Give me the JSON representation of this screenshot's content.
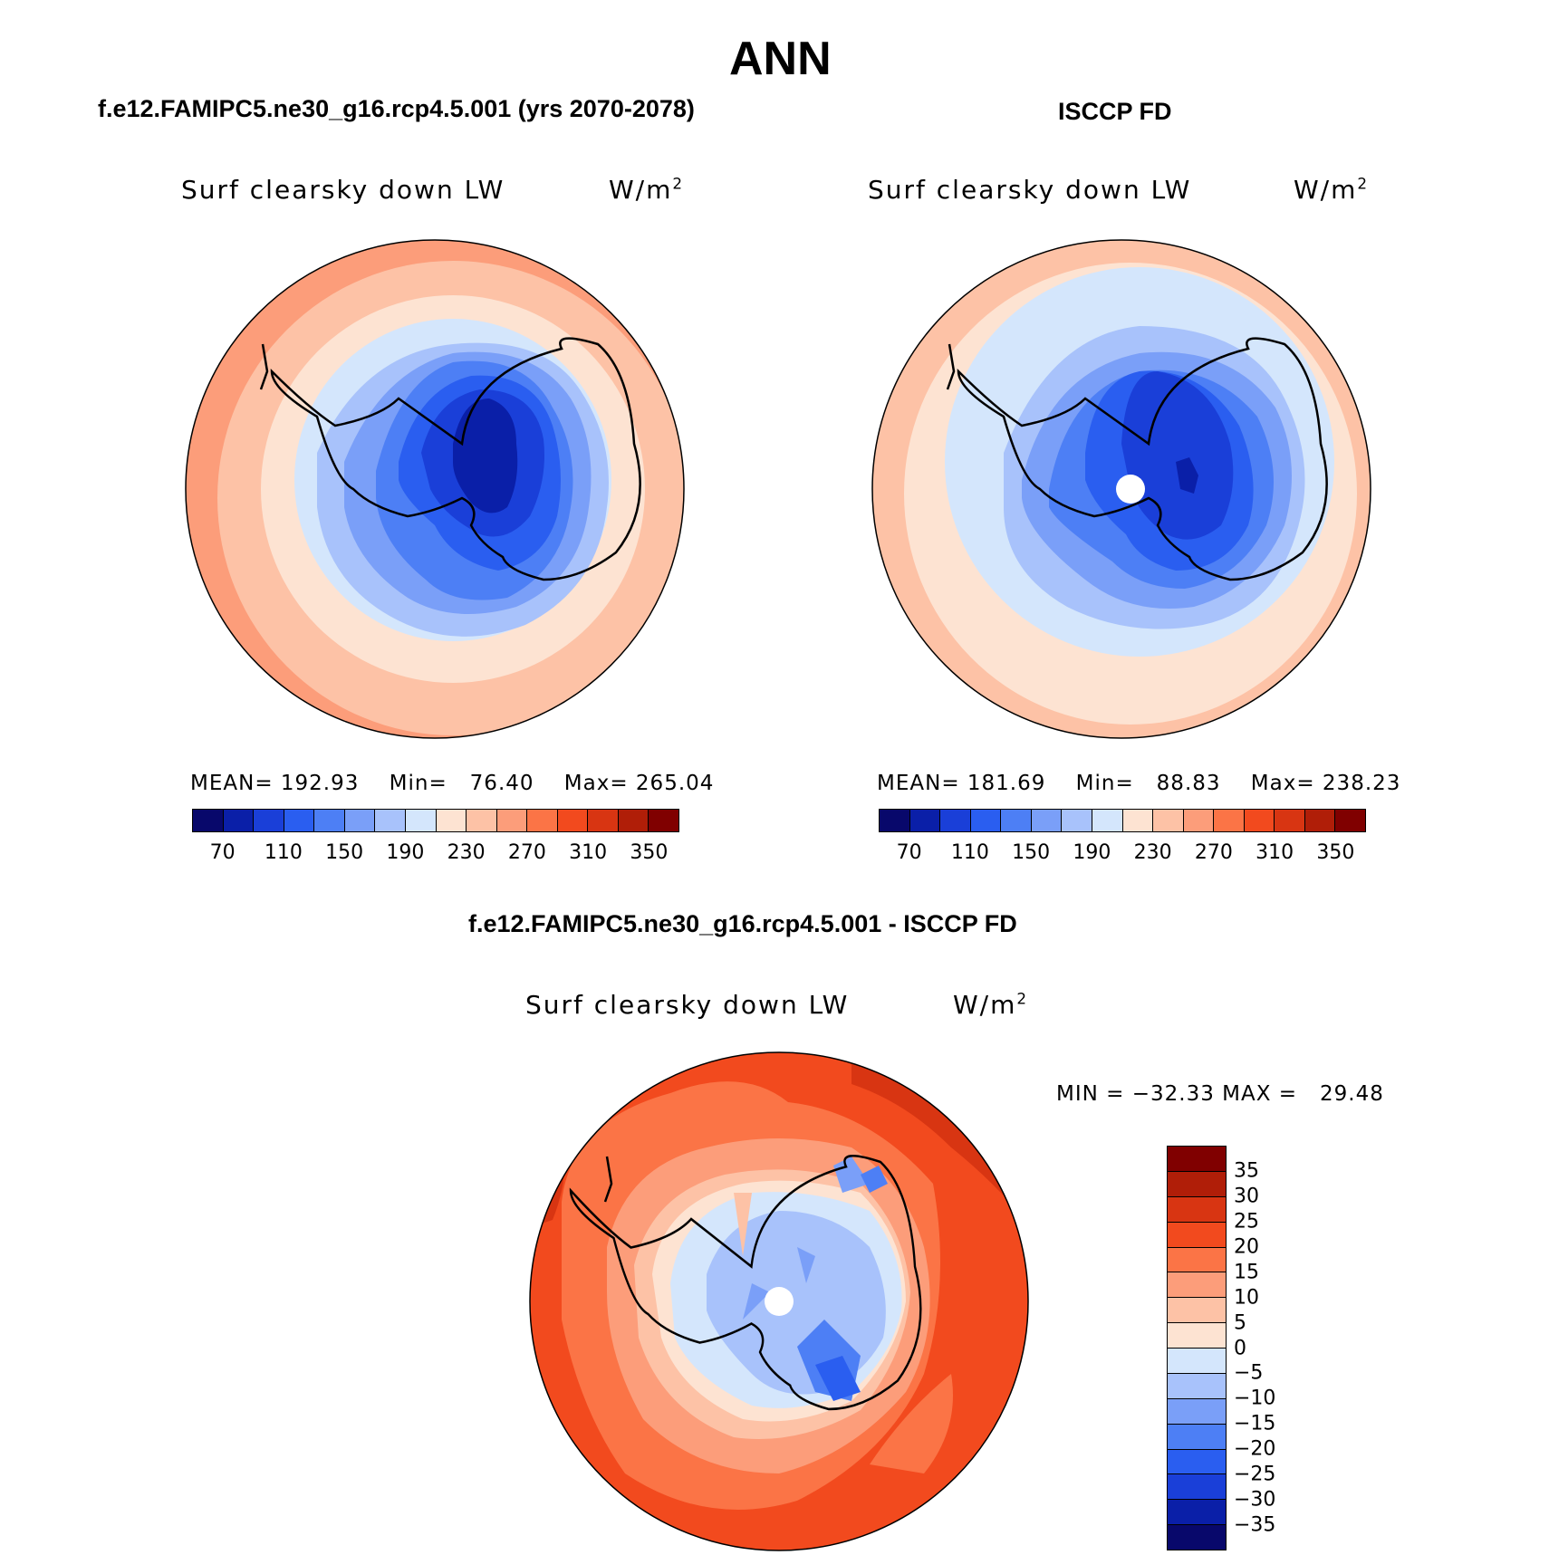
{
  "title": "ANN",
  "panel_left": {
    "title": "f.e12.FAMIPC5.ne30_g16.rcp4.5.001 (yrs 2070-2078)",
    "variable": "Surf clearsky down LW",
    "units_base": "W/m",
    "units_exp": "2",
    "mean_label": "MEAN=",
    "mean": "192.93",
    "min_label": "Min=",
    "min": "76.40",
    "max_label": "Max=",
    "max": "265.04"
  },
  "panel_right": {
    "title": "ISCCP FD",
    "variable": "Surf clearsky down LW",
    "units_base": "W/m",
    "units_exp": "2",
    "mean_label": "MEAN=",
    "mean": "181.69",
    "min_label": "Min=",
    "min": "88.83",
    "max_label": "Max=",
    "max": "238.23"
  },
  "panel_diff": {
    "title": "f.e12.FAMIPC5.ne30_g16.rcp4.5.001 - ISCCP FD",
    "variable": "Surf clearsky down LW",
    "units_base": "W/m",
    "units_exp": "2",
    "minmax_text": "MIN = −32.33 MAX =   29.48"
  },
  "abs_colorbar": {
    "colors": [
      "#08086b",
      "#0a1fa8",
      "#1a3fd8",
      "#2a5ef0",
      "#4d7ff5",
      "#7a9ff8",
      "#a8c2fb",
      "#d4e6fc",
      "#fde3d2",
      "#fdc2a6",
      "#fc9d7a",
      "#fb7446",
      "#f24a1e",
      "#d83512",
      "#b01e08",
      "#800000"
    ],
    "labels": [
      "70",
      "110",
      "150",
      "190",
      "230",
      "270",
      "310",
      "350"
    ]
  },
  "diff_colorbar": {
    "colors": [
      "#800000",
      "#b01e08",
      "#d83512",
      "#f24a1e",
      "#fb7446",
      "#fc9d7a",
      "#fdc2a6",
      "#fde3d2",
      "#d4e6fc",
      "#a8c2fb",
      "#7a9ff8",
      "#4d7ff5",
      "#2a5ef0",
      "#1a3fd8",
      "#0a1fa8",
      "#08086b"
    ],
    "labels": [
      "35",
      "30",
      "25",
      "20",
      "15",
      "10",
      "5",
      "0",
      "−5",
      "−10",
      "−15",
      "−20",
      "−25",
      "−30",
      "−35"
    ]
  }
}
